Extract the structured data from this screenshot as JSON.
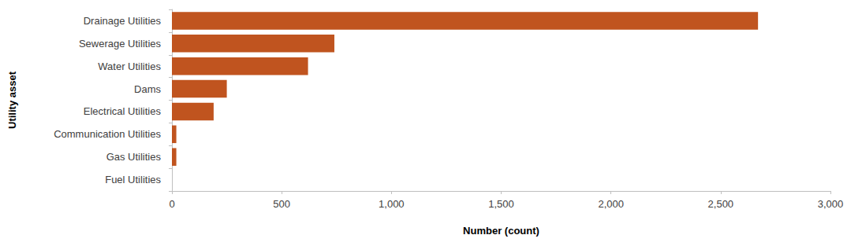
{
  "chart_data": {
    "type": "bar",
    "orientation": "horizontal",
    "x_label": "Number (count)",
    "y_label": "Utility asset",
    "categories": [
      "Drainage Utilities",
      "Sewerage Utilities",
      "Water Utilities",
      "Dams",
      "Electrical Utilities",
      "Communication Utilities",
      "Gas Utilities",
      "Fuel Utilities"
    ],
    "values": [
      2670,
      740,
      620,
      250,
      190,
      20,
      20,
      0
    ],
    "color": "#c0541f",
    "xlim": [
      0,
      3000
    ],
    "xticks": [
      0,
      500,
      1000,
      1500,
      2000,
      2500,
      3000
    ],
    "grid": false
  }
}
